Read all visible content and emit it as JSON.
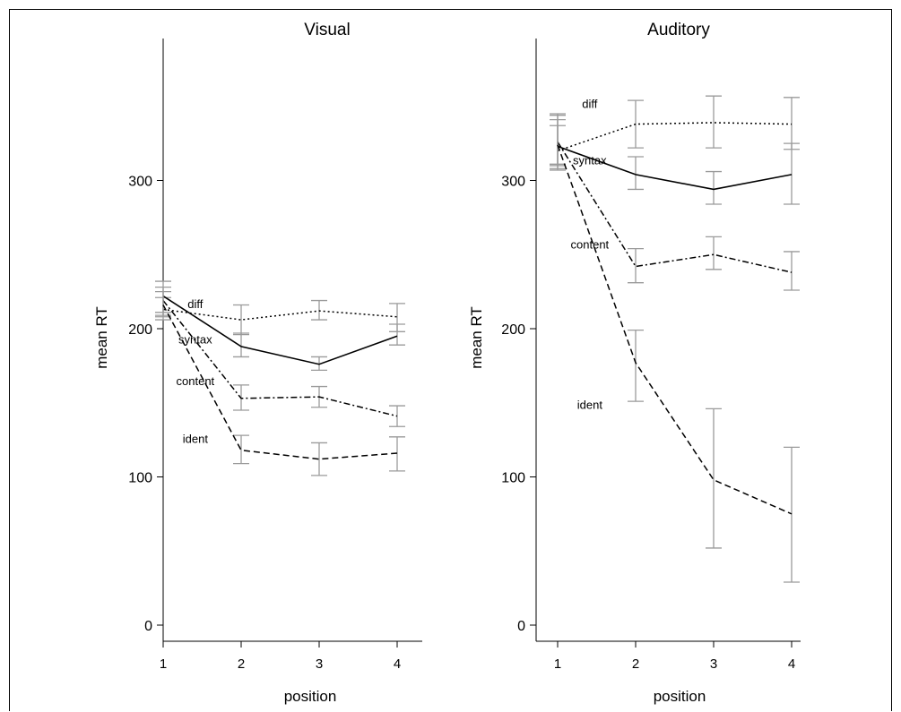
{
  "chart_data": [
    {
      "type": "line",
      "title": "Visual",
      "xlabel": "position",
      "ylabel": "mean RT",
      "x": [
        1,
        2,
        3,
        4
      ],
      "xticks": [
        "1",
        "2",
        "3",
        "4"
      ],
      "ylim": [
        0,
        390
      ],
      "yticks": [
        0,
        100,
        200,
        300
      ],
      "series": [
        {
          "name": "diff",
          "style": "dotted",
          "values": [
            213,
            206,
            212,
            208
          ],
          "err_low": [
            208,
            196,
            206,
            198
          ],
          "err_high": [
            221,
            216,
            219,
            217
          ]
        },
        {
          "name": "syntax",
          "style": "solid",
          "values": [
            222,
            188,
            176,
            195
          ],
          "err_low": [
            211,
            181,
            172,
            189
          ],
          "err_high": [
            232,
            197,
            181,
            203
          ]
        },
        {
          "name": "content",
          "style": "dashdot",
          "values": [
            219,
            153,
            154,
            141
          ],
          "err_low": [
            209,
            145,
            147,
            134
          ],
          "err_high": [
            228,
            162,
            161,
            148
          ]
        },
        {
          "name": "ident",
          "style": "dashed",
          "values": [
            216,
            118,
            112,
            116
          ],
          "err_low": [
            206,
            109,
            101,
            104
          ],
          "err_high": [
            225,
            128,
            123,
            127
          ]
        }
      ]
    },
    {
      "type": "line",
      "title": "Auditory",
      "xlabel": "position",
      "ylabel": "mean RT",
      "x": [
        1,
        2,
        3,
        4
      ],
      "xticks": [
        "1",
        "2",
        "3",
        "4"
      ],
      "ylim": [
        0,
        390
      ],
      "yticks": [
        0,
        100,
        200,
        300
      ],
      "series": [
        {
          "name": "diff",
          "style": "dotted",
          "values": [
            320,
            338,
            339,
            338
          ],
          "err_low": [
            310,
            322,
            322,
            321
          ],
          "err_high": [
            344,
            354,
            357,
            356
          ]
        },
        {
          "name": "syntax",
          "style": "solid",
          "values": [
            323,
            304,
            294,
            304
          ],
          "err_low": [
            308,
            294,
            284,
            284
          ],
          "err_high": [
            337,
            316,
            306,
            325
          ]
        },
        {
          "name": "content",
          "style": "dashdot",
          "values": [
            326,
            242,
            250,
            238
          ],
          "err_low": [
            311,
            231,
            240,
            226
          ],
          "err_high": [
            341,
            254,
            262,
            252
          ]
        },
        {
          "name": "ident",
          "style": "dashed",
          "values": [
            324,
            177,
            98,
            75
          ],
          "err_low": [
            307,
            151,
            52,
            29
          ],
          "err_high": [
            345,
            199,
            146,
            120
          ]
        }
      ]
    }
  ]
}
